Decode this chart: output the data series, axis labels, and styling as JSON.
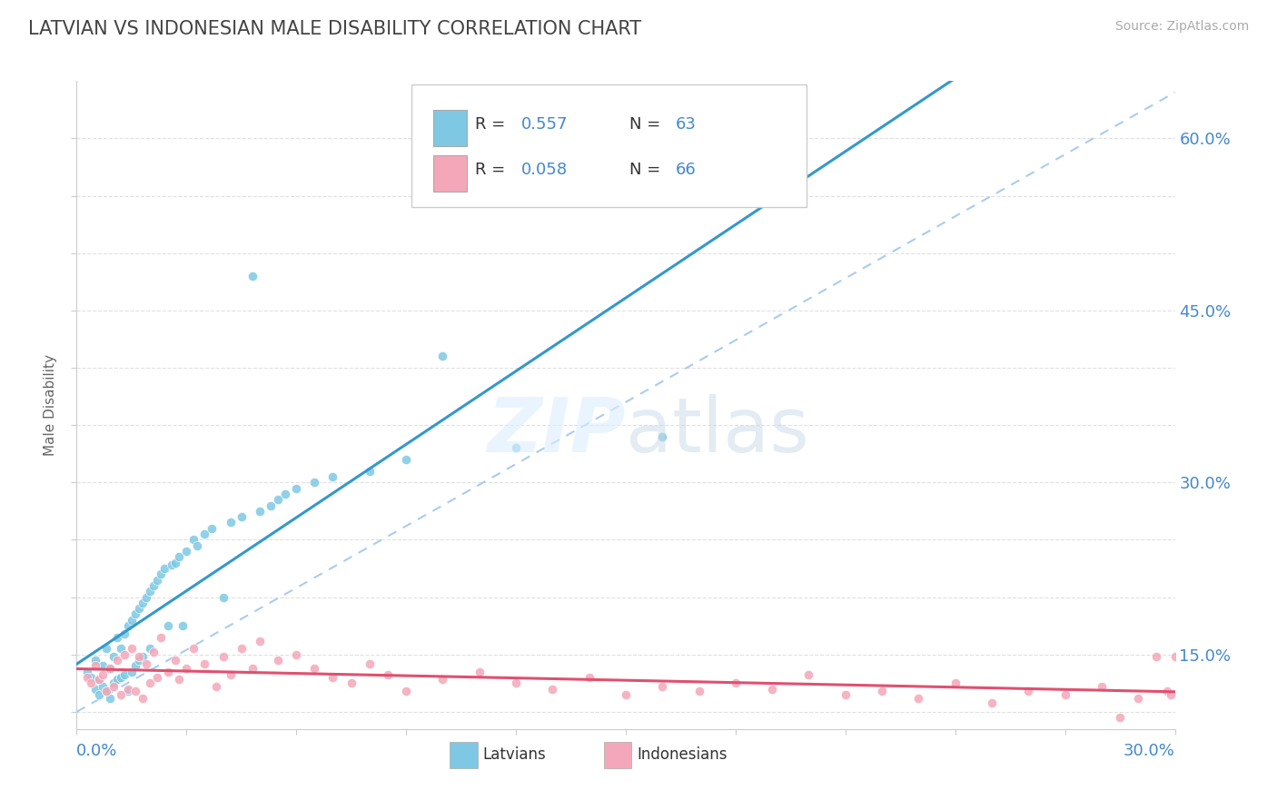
{
  "title": "LATVIAN VS INDONESIAN MALE DISABILITY CORRELATION CHART",
  "source": "Source: ZipAtlas.com",
  "ylabel_label": "Male Disability",
  "xmin": 0.0,
  "xmax": 0.3,
  "ymin": 0.085,
  "ymax": 0.65,
  "latvian_color": "#7ec8e3",
  "indonesian_color": "#f4a7b9",
  "latvian_R": 0.557,
  "latvian_N": 63,
  "indonesian_R": 0.058,
  "indonesian_N": 66,
  "latvian_line_color": "#3399cc",
  "indonesian_line_color": "#e05070",
  "ref_line_color": "#aaccee",
  "background_color": "#ffffff",
  "title_color": "#444444",
  "axis_color": "#4488cc",
  "watermark": "ZIPatlas",
  "grid_color": "#e0e0e0",
  "legend_box_color": "#dddddd",
  "lat_scatter_x": [
    0.003,
    0.004,
    0.005,
    0.005,
    0.006,
    0.006,
    0.007,
    0.007,
    0.008,
    0.008,
    0.009,
    0.009,
    0.01,
    0.01,
    0.011,
    0.011,
    0.012,
    0.012,
    0.013,
    0.013,
    0.014,
    0.014,
    0.015,
    0.015,
    0.016,
    0.016,
    0.017,
    0.017,
    0.018,
    0.018,
    0.019,
    0.02,
    0.02,
    0.021,
    0.022,
    0.023,
    0.024,
    0.025,
    0.026,
    0.027,
    0.028,
    0.029,
    0.03,
    0.032,
    0.033,
    0.035,
    0.037,
    0.04,
    0.042,
    0.045,
    0.048,
    0.05,
    0.053,
    0.055,
    0.057,
    0.06,
    0.065,
    0.07,
    0.08,
    0.09,
    0.1,
    0.12,
    0.16
  ],
  "lat_scatter_y": [
    0.135,
    0.13,
    0.145,
    0.12,
    0.128,
    0.115,
    0.14,
    0.122,
    0.155,
    0.118,
    0.138,
    0.112,
    0.148,
    0.125,
    0.165,
    0.128,
    0.155,
    0.13,
    0.168,
    0.132,
    0.175,
    0.118,
    0.18,
    0.135,
    0.185,
    0.14,
    0.19,
    0.145,
    0.195,
    0.148,
    0.2,
    0.205,
    0.155,
    0.21,
    0.215,
    0.22,
    0.225,
    0.175,
    0.228,
    0.23,
    0.235,
    0.175,
    0.24,
    0.25,
    0.245,
    0.255,
    0.26,
    0.2,
    0.265,
    0.27,
    0.48,
    0.275,
    0.28,
    0.285,
    0.29,
    0.295,
    0.3,
    0.305,
    0.31,
    0.32,
    0.41,
    0.33,
    0.34
  ],
  "ind_scatter_x": [
    0.003,
    0.004,
    0.005,
    0.006,
    0.007,
    0.008,
    0.009,
    0.01,
    0.011,
    0.012,
    0.013,
    0.014,
    0.015,
    0.016,
    0.017,
    0.018,
    0.019,
    0.02,
    0.021,
    0.022,
    0.023,
    0.025,
    0.027,
    0.028,
    0.03,
    0.032,
    0.035,
    0.038,
    0.04,
    0.042,
    0.045,
    0.048,
    0.05,
    0.055,
    0.06,
    0.065,
    0.07,
    0.075,
    0.08,
    0.085,
    0.09,
    0.1,
    0.11,
    0.12,
    0.13,
    0.14,
    0.15,
    0.16,
    0.17,
    0.18,
    0.19,
    0.2,
    0.21,
    0.22,
    0.23,
    0.24,
    0.25,
    0.26,
    0.27,
    0.28,
    0.285,
    0.29,
    0.295,
    0.298,
    0.299,
    0.3
  ],
  "ind_scatter_y": [
    0.13,
    0.125,
    0.14,
    0.128,
    0.132,
    0.118,
    0.138,
    0.122,
    0.145,
    0.115,
    0.15,
    0.12,
    0.155,
    0.118,
    0.148,
    0.112,
    0.142,
    0.125,
    0.152,
    0.13,
    0.165,
    0.135,
    0.145,
    0.128,
    0.138,
    0.155,
    0.142,
    0.122,
    0.148,
    0.132,
    0.155,
    0.138,
    0.162,
    0.145,
    0.15,
    0.138,
    0.13,
    0.125,
    0.142,
    0.132,
    0.118,
    0.128,
    0.135,
    0.125,
    0.12,
    0.13,
    0.115,
    0.122,
    0.118,
    0.125,
    0.12,
    0.132,
    0.115,
    0.118,
    0.112,
    0.125,
    0.108,
    0.118,
    0.115,
    0.122,
    0.095,
    0.112,
    0.148,
    0.118,
    0.115,
    0.148
  ],
  "y_ticks": [
    0.1,
    0.15,
    0.2,
    0.25,
    0.3,
    0.35,
    0.4,
    0.45,
    0.5,
    0.55,
    0.6
  ],
  "y_tick_labels": [
    "",
    "15.0%",
    "",
    "",
    "30.0%",
    "",
    "",
    "45.0%",
    "",
    "",
    "60.0%"
  ],
  "ref_line_x": [
    0.0,
    0.3
  ],
  "ref_line_y": [
    0.1,
    0.64
  ]
}
